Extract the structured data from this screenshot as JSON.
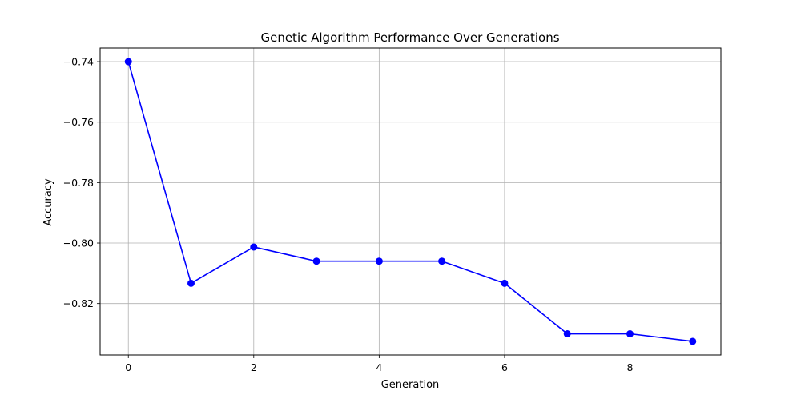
{
  "chart_data": {
    "type": "line",
    "title": "Genetic Algorithm Performance Over Generations",
    "xlabel": "Generation",
    "ylabel": "Accuracy",
    "x": [
      0,
      1,
      2,
      3,
      4,
      5,
      6,
      7,
      8,
      9
    ],
    "series": [
      {
        "values": [
          -0.74,
          -0.8133,
          -0.8013,
          -0.806,
          -0.806,
          -0.806,
          -0.8133,
          -0.83,
          -0.83,
          -0.8325
        ],
        "color": "#0000ff",
        "marker": "circle"
      }
    ],
    "xlim": [
      -0.45,
      9.45
    ],
    "ylim": [
      -0.837,
      -0.7355
    ],
    "xticks": [
      0,
      2,
      4,
      6,
      8
    ],
    "xtick_labels": [
      "0",
      "2",
      "4",
      "6",
      "8"
    ],
    "yticks": [
      -0.74,
      -0.76,
      -0.78,
      -0.8,
      -0.82
    ],
    "ytick_labels": [
      "−0.74",
      "−0.76",
      "−0.78",
      "−0.80",
      "−0.82"
    ],
    "grid": true,
    "legend": "none"
  }
}
